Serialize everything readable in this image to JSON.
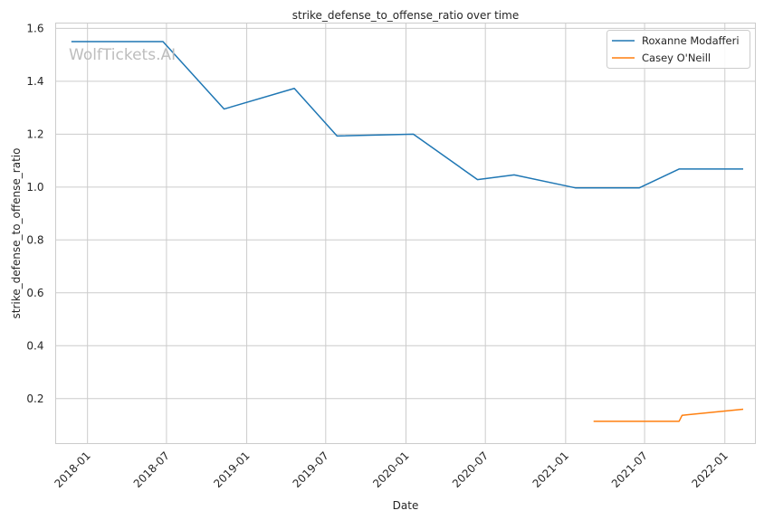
{
  "chart_data": {
    "type": "line",
    "title": "strike_defense_to_offense_ratio over time",
    "xlabel": "Date",
    "ylabel": "strike_defense_to_offense_ratio",
    "watermark": "WolfTickets.AI",
    "xlim": [
      "2017-10-20",
      "2022-03-12"
    ],
    "ylim": [
      0.03,
      1.62
    ],
    "x_ticks": [
      {
        "date": "2018-01-01",
        "label": "2018-01"
      },
      {
        "date": "2018-07-01",
        "label": "2018-07"
      },
      {
        "date": "2019-01-01",
        "label": "2019-01"
      },
      {
        "date": "2019-07-01",
        "label": "2019-07"
      },
      {
        "date": "2020-01-01",
        "label": "2020-01"
      },
      {
        "date": "2020-07-01",
        "label": "2020-07"
      },
      {
        "date": "2021-01-01",
        "label": "2021-01"
      },
      {
        "date": "2021-07-01",
        "label": "2021-07"
      },
      {
        "date": "2022-01-01",
        "label": "2022-01"
      }
    ],
    "y_ticks": [
      {
        "value": 0.2,
        "label": "0.2"
      },
      {
        "value": 0.4,
        "label": "0.4"
      },
      {
        "value": 0.6,
        "label": "0.6"
      },
      {
        "value": 0.8,
        "label": "0.8"
      },
      {
        "value": 1.0,
        "label": "1.0"
      },
      {
        "value": 1.2,
        "label": "1.2"
      },
      {
        "value": 1.4,
        "label": "1.4"
      },
      {
        "value": 1.6,
        "label": "1.6"
      }
    ],
    "grid": true,
    "legend_position": "top-right",
    "series": [
      {
        "name": "Roxanne Modafferi",
        "color": "#1f77b4",
        "points": [
          {
            "x": "2017-11-25",
            "y": 1.55
          },
          {
            "x": "2018-06-23",
            "y": 1.55
          },
          {
            "x": "2018-11-10",
            "y": 1.295
          },
          {
            "x": "2019-04-20",
            "y": 1.373
          },
          {
            "x": "2019-07-27",
            "y": 1.193
          },
          {
            "x": "2020-01-18",
            "y": 1.2
          },
          {
            "x": "2020-06-13",
            "y": 1.028
          },
          {
            "x": "2020-09-05",
            "y": 1.046
          },
          {
            "x": "2021-01-23",
            "y": 0.997
          },
          {
            "x": "2021-06-19",
            "y": 0.997
          },
          {
            "x": "2021-09-18",
            "y": 1.068
          },
          {
            "x": "2022-02-12",
            "y": 1.068
          }
        ]
      },
      {
        "name": "Casey O'Neill",
        "color": "#ff7f0e",
        "points": [
          {
            "x": "2021-03-06",
            "y": 0.114
          },
          {
            "x": "2021-09-18",
            "y": 0.114
          },
          {
            "x": "2021-09-25",
            "y": 0.137
          },
          {
            "x": "2022-02-12",
            "y": 0.16
          }
        ]
      }
    ]
  }
}
